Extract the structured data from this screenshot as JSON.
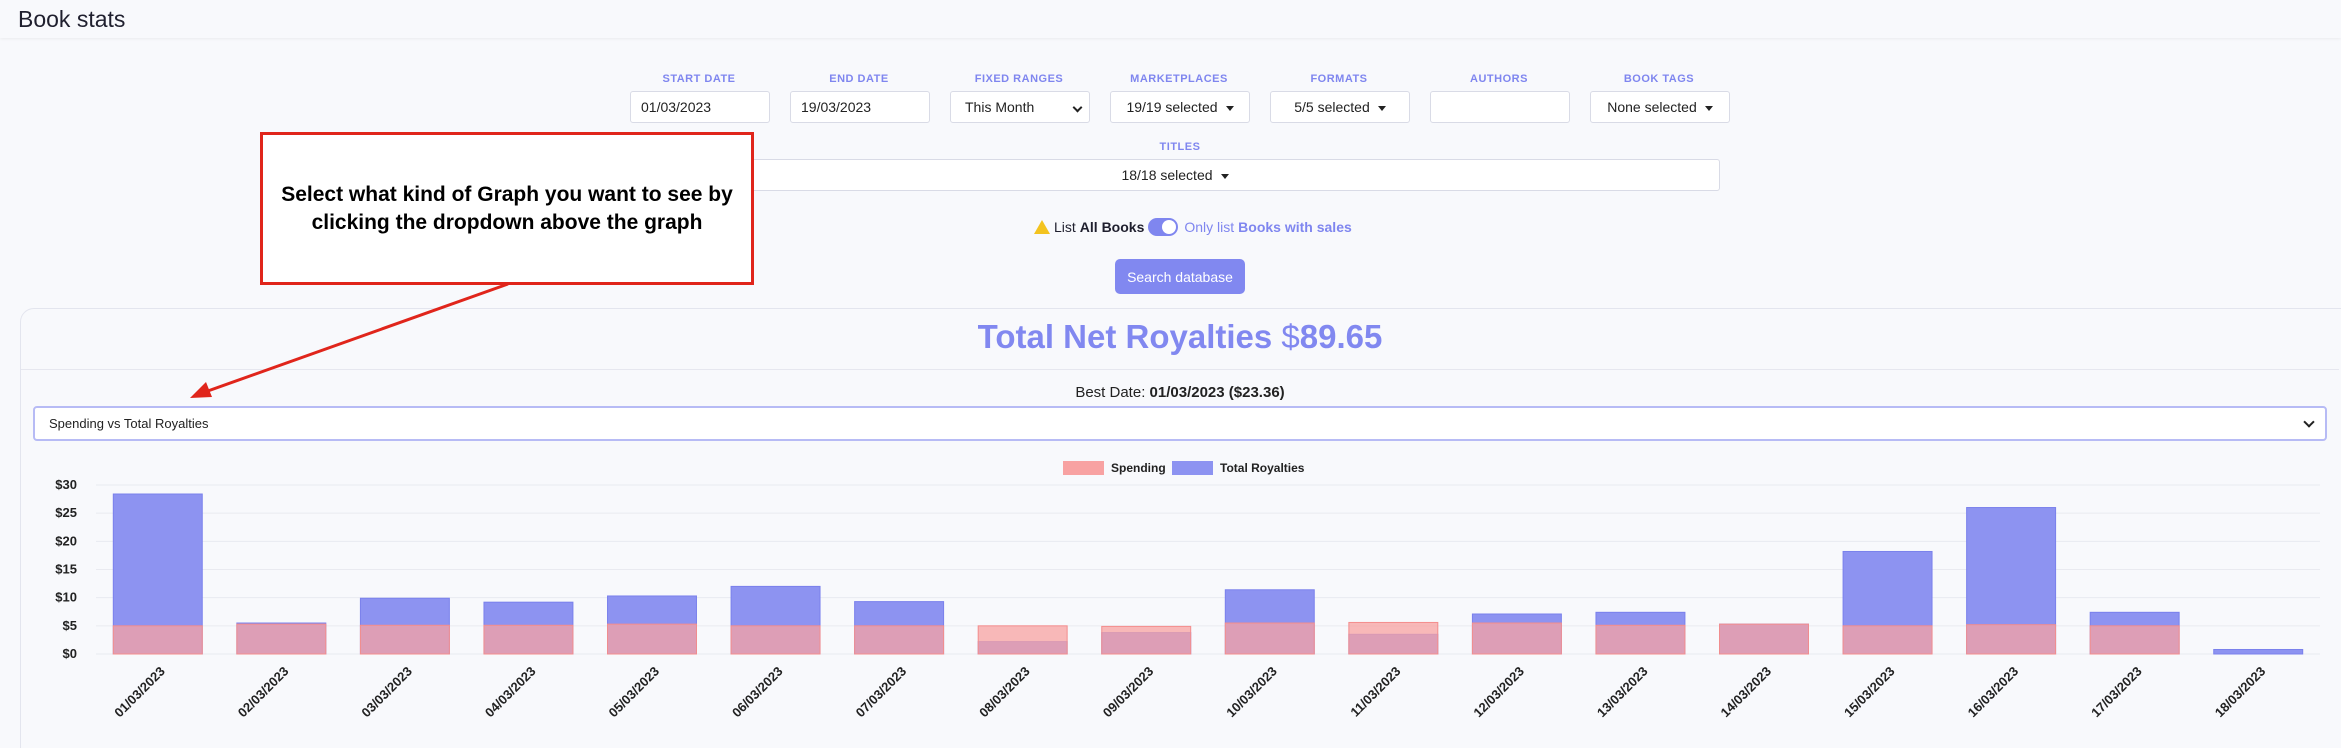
{
  "page": {
    "title": "Book stats"
  },
  "filters": {
    "start_date": {
      "label": "START DATE",
      "value": "01/03/2023"
    },
    "end_date": {
      "label": "END DATE",
      "value": "19/03/2023"
    },
    "fixed_ranges": {
      "label": "FIXED RANGES",
      "value": "This Month"
    },
    "marketplaces": {
      "label": "MARKETPLACES",
      "value": "19/19 selected"
    },
    "formats": {
      "label": "FORMATS",
      "value": "5/5 selected"
    },
    "authors": {
      "label": "AUTHORS",
      "value": ""
    },
    "book_tags": {
      "label": "BOOK TAGS",
      "value": "None selected"
    },
    "titles": {
      "label": "TITLES",
      "value": "18/18 selected"
    }
  },
  "toggle": {
    "left_prefix": "List",
    "left_bold": "All Books",
    "right_prefix": "Only list",
    "right_bold": "Books with sales"
  },
  "search_button": "Search database",
  "annotation": {
    "text": "Select what kind of Graph you want to see by clicking the dropdown above the graph"
  },
  "summary": {
    "label": "Total Net Royalties",
    "currency": "$",
    "amount": "89.65",
    "best_label": "Best Date:",
    "best_value": "01/03/2023 ($23.36)"
  },
  "graph_type_select": "Spending vs Total Royalties",
  "colors": {
    "accent": "#8188f0",
    "spending": "#f8a2a2",
    "royalties": "#8d93f1",
    "annotation": "#e0251b"
  },
  "chart_data": {
    "type": "bar",
    "categories": [
      "01/03/2023",
      "02/03/2023",
      "03/03/2023",
      "04/03/2023",
      "05/03/2023",
      "06/03/2023",
      "07/03/2023",
      "08/03/2023",
      "09/03/2023",
      "10/03/2023",
      "11/03/2023",
      "12/03/2023",
      "13/03/2023",
      "14/03/2023",
      "15/03/2023",
      "16/03/2023",
      "17/03/2023",
      "18/03/2023"
    ],
    "series": [
      {
        "name": "Spending",
        "values": [
          5.0,
          5.3,
          5.1,
          5.1,
          5.3,
          5.0,
          5.0,
          5.0,
          4.9,
          5.5,
          5.6,
          5.5,
          5.1,
          5.3,
          5.0,
          5.2,
          5.0,
          0
        ]
      },
      {
        "name": "Total Royalties",
        "values": [
          28.4,
          5.5,
          9.9,
          9.2,
          10.3,
          12.0,
          9.3,
          2.2,
          3.8,
          11.4,
          3.5,
          7.1,
          7.4,
          5.3,
          18.2,
          26.0,
          7.4,
          0.8
        ]
      }
    ],
    "ylim": [
      0,
      30
    ],
    "yticks": [
      "$0",
      "$5",
      "$10",
      "$15",
      "$20",
      "$25",
      "$30"
    ],
    "legend_position": "top-center"
  }
}
